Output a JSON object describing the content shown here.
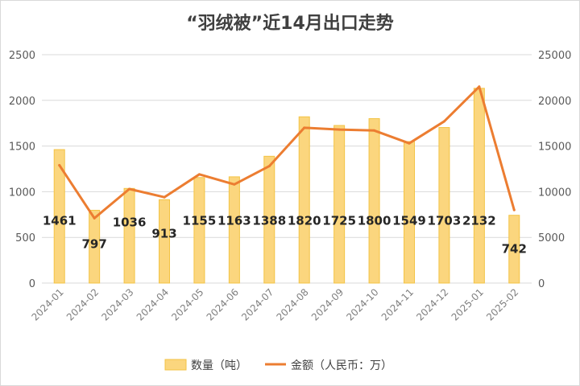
{
  "chart_data": {
    "type": "bar+line",
    "title": "“羽绒被”近14月出口走势",
    "categories": [
      "2024-01",
      "2024-02",
      "2024-03",
      "2024-04",
      "2024-05",
      "2024-06",
      "2024-07",
      "2024-08",
      "2024-09",
      "2024-10",
      "2024-11",
      "2024-12",
      "2025-01",
      "2025-02"
    ],
    "series": [
      {
        "name": "数量（吨）",
        "type": "bar",
        "axis": "left",
        "values": [
          1461,
          797,
          1036,
          913,
          1155,
          1163,
          1388,
          1820,
          1725,
          1800,
          1549,
          1703,
          2132,
          742
        ],
        "data_labels": [
          "1461",
          "797",
          "1036",
          "913",
          "1155",
          "1163",
          "1388",
          "1820",
          "1725",
          "1800",
          "1549",
          "1703",
          "2132",
          "742"
        ]
      },
      {
        "name": "金额（人民币：万）",
        "type": "line",
        "axis": "right",
        "values": [
          12900,
          7100,
          10300,
          9400,
          11900,
          10800,
          12800,
          17000,
          16800,
          16700,
          15300,
          17700,
          21500,
          8000
        ]
      }
    ],
    "left_axis": {
      "ylim": [
        0,
        2500
      ],
      "ticks": [
        "0",
        "500",
        "1000",
        "1500",
        "2000",
        "2500"
      ]
    },
    "right_axis": {
      "ylim": [
        0,
        25000
      ],
      "ticks": [
        "0",
        "5000",
        "10000",
        "15000",
        "20000",
        "25000"
      ]
    },
    "grid": true,
    "legend_position": "bottom",
    "colors": {
      "bar_fill": "#fbd67e",
      "bar_edge": "#f3c344",
      "line": "#ec7d31",
      "grid": "#d9d9d9"
    }
  }
}
